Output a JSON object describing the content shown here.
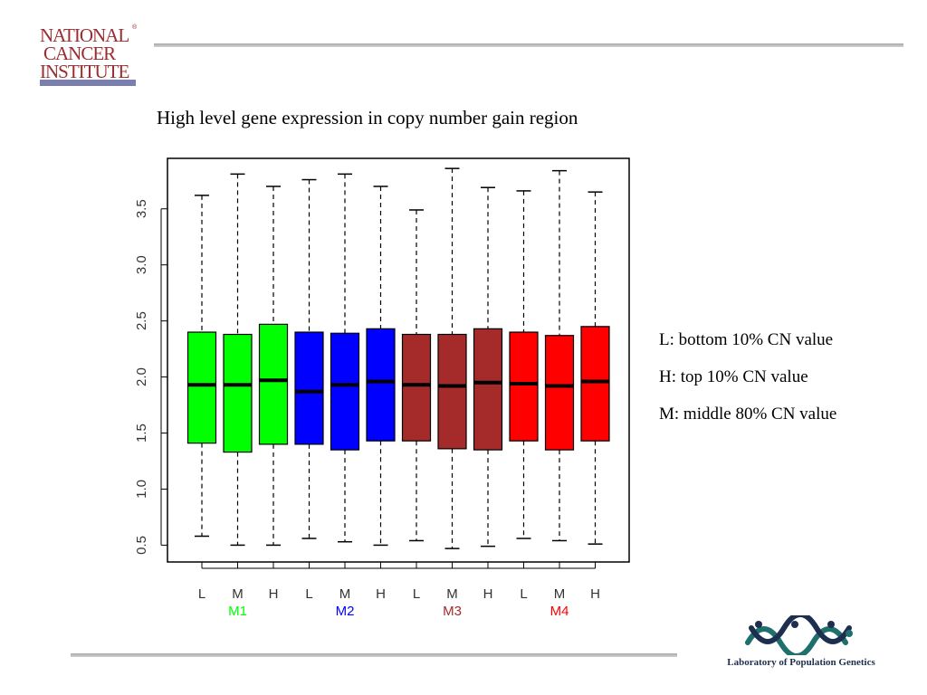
{
  "header": {
    "logo_text": "NATIONAL CANCER INSTITUTE",
    "logo_color": "#9b2c2f",
    "logo_bar_color": "#7b7fb0"
  },
  "slide": {
    "title": "High level gene expression in copy number gain region"
  },
  "legend": [
    "L: bottom 10% CN value",
    "H: top 10% CN value",
    "M: middle 80% CN value"
  ],
  "footer": {
    "lab_name": "Laboratory of Population Genetics",
    "lab_logo_color": "#1f6f6f"
  },
  "chart_data": {
    "type": "boxplot",
    "title": "",
    "xlabel": "",
    "ylabel": "",
    "ylim": [
      0.35,
      3.95
    ],
    "yticks": [
      "0.5",
      "1.0",
      "1.5",
      "2.0",
      "2.5",
      "3.0",
      "3.5"
    ],
    "grid": false,
    "groups": [
      {
        "name": "M1",
        "color": "#00ff00"
      },
      {
        "name": "M2",
        "color": "#0000ff"
      },
      {
        "name": "M3",
        "color": "#a52a2a"
      },
      {
        "name": "M4",
        "color": "#ff0000"
      }
    ],
    "boxes": [
      {
        "label": "L",
        "group": "M1",
        "min": 0.58,
        "q1": 1.41,
        "median": 1.93,
        "q3": 2.4,
        "max": 3.62
      },
      {
        "label": "M",
        "group": "M1",
        "min": 0.5,
        "q1": 1.33,
        "median": 1.93,
        "q3": 2.38,
        "max": 3.81
      },
      {
        "label": "H",
        "group": "M1",
        "min": 0.5,
        "q1": 1.4,
        "median": 1.97,
        "q3": 2.47,
        "max": 3.7
      },
      {
        "label": "L",
        "group": "M2",
        "min": 0.56,
        "q1": 1.4,
        "median": 1.87,
        "q3": 2.4,
        "max": 3.76
      },
      {
        "label": "M",
        "group": "M2",
        "min": 0.53,
        "q1": 1.35,
        "median": 1.93,
        "q3": 2.39,
        "max": 3.81
      },
      {
        "label": "H",
        "group": "M2",
        "min": 0.5,
        "q1": 1.43,
        "median": 1.96,
        "q3": 2.43,
        "max": 3.7
      },
      {
        "label": "L",
        "group": "M3",
        "min": 0.54,
        "q1": 1.43,
        "median": 1.93,
        "q3": 2.38,
        "max": 3.49
      },
      {
        "label": "M",
        "group": "M3",
        "min": 0.47,
        "q1": 1.36,
        "median": 1.92,
        "q3": 2.38,
        "max": 3.86
      },
      {
        "label": "H",
        "group": "M3",
        "min": 0.49,
        "q1": 1.35,
        "median": 1.95,
        "q3": 2.43,
        "max": 3.69
      },
      {
        "label": "L",
        "group": "M4",
        "min": 0.56,
        "q1": 1.43,
        "median": 1.94,
        "q3": 2.4,
        "max": 3.66
      },
      {
        "label": "M",
        "group": "M4",
        "min": 0.54,
        "q1": 1.35,
        "median": 1.92,
        "q3": 2.37,
        "max": 3.84
      },
      {
        "label": "H",
        "group": "M4",
        "min": 0.51,
        "q1": 1.43,
        "median": 1.96,
        "q3": 2.45,
        "max": 3.65
      }
    ]
  }
}
